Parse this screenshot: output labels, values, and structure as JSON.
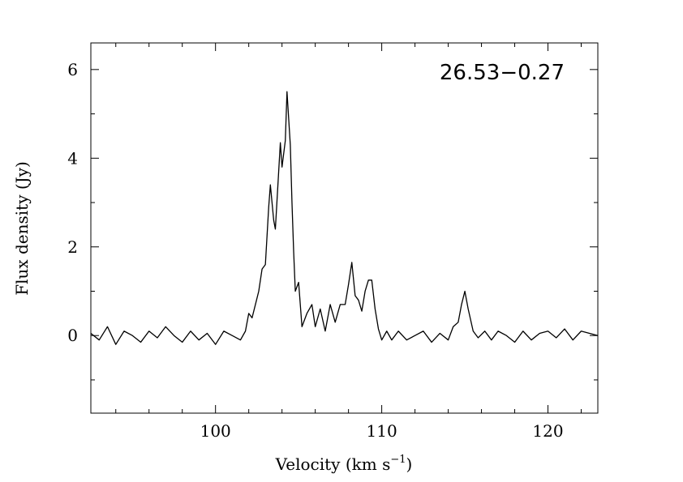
{
  "chart_data": {
    "type": "line",
    "title": "",
    "annotation": "26.53−0.27",
    "xlabel": "Velocity (km s",
    "xlabel_superscript": "−1",
    "xlabel_close": ")",
    "ylabel": "Flux density (Jy)",
    "xlim": [
      92.5,
      123
    ],
    "ylim": [
      -1.75,
      6.6
    ],
    "xticks": [
      100,
      110,
      120
    ],
    "xtick_labels": [
      "100",
      "110",
      "120"
    ],
    "yticks": [
      0,
      2,
      4,
      6
    ],
    "ytick_labels": [
      "0",
      "2",
      "4",
      "6"
    ],
    "grid": false,
    "legend": "none",
    "series": [
      {
        "color": "#000000",
        "x": [
          92.5,
          93.0,
          93.5,
          94.0,
          94.5,
          95.0,
          95.5,
          96.0,
          96.5,
          97.0,
          97.5,
          98.0,
          98.5,
          99.0,
          99.5,
          100.0,
          100.5,
          101.0,
          101.5,
          101.8,
          102.0,
          102.2,
          102.4,
          102.6,
          102.8,
          103.0,
          103.2,
          103.3,
          103.5,
          103.6,
          103.8,
          103.9,
          104.0,
          104.2,
          104.3,
          104.5,
          104.6,
          104.7,
          104.8,
          105.0,
          105.2,
          105.5,
          105.8,
          106.0,
          106.3,
          106.6,
          106.9,
          107.2,
          107.5,
          107.8,
          108.0,
          108.2,
          108.4,
          108.6,
          108.8,
          109.0,
          109.2,
          109.4,
          109.6,
          109.8,
          110.0,
          110.3,
          110.6,
          111.0,
          111.5,
          112.0,
          112.5,
          113.0,
          113.5,
          114.0,
          114.3,
          114.6,
          114.8,
          115.0,
          115.2,
          115.5,
          115.8,
          116.2,
          116.6,
          117.0,
          117.5,
          118.0,
          118.5,
          119.0,
          119.5,
          120.0,
          120.5,
          121.0,
          121.5,
          122.0,
          122.5,
          123.0
        ],
        "y": [
          0.05,
          -0.1,
          0.2,
          -0.2,
          0.1,
          0.0,
          -0.15,
          0.1,
          -0.05,
          0.2,
          0.0,
          -0.15,
          0.1,
          -0.1,
          0.05,
          -0.2,
          0.1,
          0.0,
          -0.1,
          0.1,
          0.5,
          0.4,
          0.7,
          1.0,
          1.5,
          1.6,
          2.9,
          3.4,
          2.6,
          2.4,
          3.7,
          4.35,
          3.8,
          4.4,
          5.5,
          4.3,
          3.0,
          1.9,
          1.0,
          1.2,
          0.2,
          0.5,
          0.7,
          0.2,
          0.6,
          0.1,
          0.7,
          0.3,
          0.7,
          0.7,
          1.15,
          1.65,
          0.9,
          0.8,
          0.55,
          1.0,
          1.25,
          1.25,
          0.6,
          0.15,
          -0.1,
          0.1,
          -0.1,
          0.1,
          -0.1,
          0.0,
          0.1,
          -0.15,
          0.05,
          -0.1,
          0.2,
          0.3,
          0.7,
          1.0,
          0.6,
          0.1,
          -0.05,
          0.1,
          -0.1,
          0.1,
          0.0,
          -0.15,
          0.1,
          -0.1,
          0.05,
          0.1,
          -0.05,
          0.15,
          -0.1,
          0.1,
          0.05,
          0.0
        ]
      }
    ]
  }
}
